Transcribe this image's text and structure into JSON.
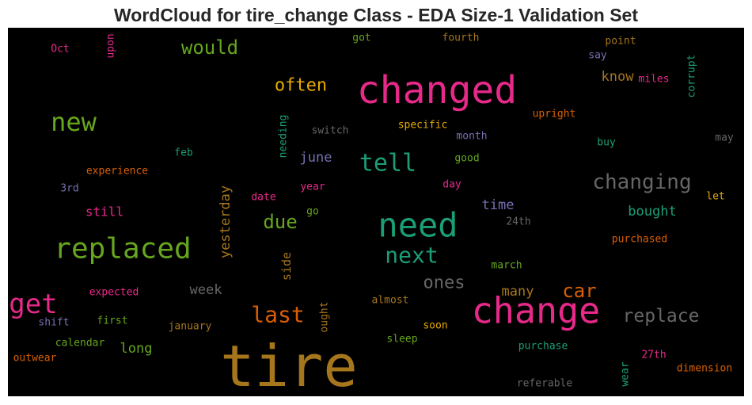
{
  "chart_data": {
    "type": "wordcloud",
    "title": "WordCloud for tire_change Class - EDA Size-1 Validation Set",
    "words": [
      {
        "text": "tire",
        "color": "#a6761d"
      },
      {
        "text": "changed",
        "color": "#e7298a"
      },
      {
        "text": "change",
        "color": "#e7298a"
      },
      {
        "text": "need",
        "color": "#1b9e77"
      },
      {
        "text": "replaced",
        "color": "#66a61e"
      },
      {
        "text": "get",
        "color": "#e7298a"
      },
      {
        "text": "new",
        "color": "#66a61e"
      },
      {
        "text": "tell",
        "color": "#1b9e77"
      },
      {
        "text": "next",
        "color": "#1b9e77"
      },
      {
        "text": "changing",
        "color": "#666666"
      },
      {
        "text": "replace",
        "color": "#666666"
      },
      {
        "text": "last",
        "color": "#d95f02"
      },
      {
        "text": "car",
        "color": "#d95f02"
      },
      {
        "text": "would",
        "color": "#66a61e"
      },
      {
        "text": "often",
        "color": "#e6ab02"
      },
      {
        "text": "due",
        "color": "#66a61e"
      },
      {
        "text": "ones",
        "color": "#666666"
      },
      {
        "text": "know",
        "color": "#a6761d"
      },
      {
        "text": "bought",
        "color": "#1b9e77"
      },
      {
        "text": "still",
        "color": "#e7298a"
      },
      {
        "text": "long",
        "color": "#66a61e"
      },
      {
        "text": "week",
        "color": "#666666"
      },
      {
        "text": "time",
        "color": "#7570b3"
      },
      {
        "text": "june",
        "color": "#7570b3"
      },
      {
        "text": "many",
        "color": "#a6761d"
      },
      {
        "text": "yesterday",
        "color": "#a6761d"
      },
      {
        "text": "side",
        "color": "#a6761d"
      },
      {
        "text": "miles",
        "color": "#e7298a"
      },
      {
        "text": "upright",
        "color": "#d95f02"
      },
      {
        "text": "specific",
        "color": "#e6ab02"
      },
      {
        "text": "switch",
        "color": "#666666"
      },
      {
        "text": "month",
        "color": "#7570b3"
      },
      {
        "text": "may",
        "color": "#666666"
      },
      {
        "text": "buy",
        "color": "#1b9e77"
      },
      {
        "text": "feb",
        "color": "#1b9e77"
      },
      {
        "text": "good",
        "color": "#66a61e"
      },
      {
        "text": "experience",
        "color": "#d95f02"
      },
      {
        "text": "3rd",
        "color": "#7570b3"
      },
      {
        "text": "date",
        "color": "#e7298a"
      },
      {
        "text": "year",
        "color": "#e7298a"
      },
      {
        "text": "day",
        "color": "#e7298a"
      },
      {
        "text": "let",
        "color": "#e6ab02"
      },
      {
        "text": "go",
        "color": "#66a61e"
      },
      {
        "text": "24th",
        "color": "#666666"
      },
      {
        "text": "purchased",
        "color": "#d95f02"
      },
      {
        "text": "march",
        "color": "#66a61e"
      },
      {
        "text": "expected",
        "color": "#e7298a"
      },
      {
        "text": "almost",
        "color": "#a6761d"
      },
      {
        "text": "first",
        "color": "#66a61e"
      },
      {
        "text": "shift",
        "color": "#7570b3"
      },
      {
        "text": "january",
        "color": "#a6761d"
      },
      {
        "text": "soon",
        "color": "#e6ab02"
      },
      {
        "text": "ought",
        "color": "#a6761d"
      },
      {
        "text": "sleep",
        "color": "#66a61e"
      },
      {
        "text": "calendar",
        "color": "#66a61e"
      },
      {
        "text": "purchase",
        "color": "#1b9e77"
      },
      {
        "text": "27th",
        "color": "#e7298a"
      },
      {
        "text": "outwear",
        "color": "#d95f02"
      },
      {
        "text": "dimension",
        "color": "#d95f02"
      },
      {
        "text": "wear",
        "color": "#1b9e77"
      },
      {
        "text": "referable",
        "color": "#666666"
      },
      {
        "text": "Oct",
        "color": "#e7298a"
      },
      {
        "text": "upon",
        "color": "#e7298a"
      },
      {
        "text": "got",
        "color": "#66a61e"
      },
      {
        "text": "fourth",
        "color": "#a6761d"
      },
      {
        "text": "point",
        "color": "#a6761d"
      },
      {
        "text": "say",
        "color": "#7570b3"
      },
      {
        "text": "corrupt",
        "color": "#1b9e77"
      },
      {
        "text": "needing",
        "color": "#1b9e77"
      }
    ]
  }
}
